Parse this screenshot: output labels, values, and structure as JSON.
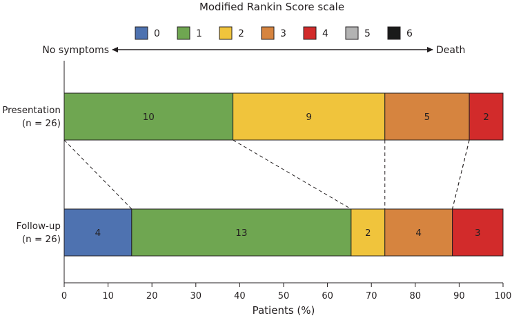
{
  "chart_data": {
    "type": "stacked-bar-horizontal",
    "title": "Modified Rankin Score scale",
    "legend": [
      {
        "label": "0",
        "color": "#4e72b0"
      },
      {
        "label": "1",
        "color": "#6fa651"
      },
      {
        "label": "2",
        "color": "#f0c43c"
      },
      {
        "label": "3",
        "color": "#d6843f"
      },
      {
        "label": "4",
        "color": "#d22b2b"
      },
      {
        "label": "5",
        "color": "#b3b3b3"
      },
      {
        "label": "6",
        "color": "#1a1a1a"
      }
    ],
    "scale_arrow": {
      "left_label": "No symptoms",
      "right_label": "Death"
    },
    "rows": [
      {
        "label_line1": "Presentation",
        "label_line2": "(n = 26)",
        "total": 26,
        "segments": [
          {
            "score": "1",
            "count": 10
          },
          {
            "score": "2",
            "count": 9
          },
          {
            "score": "3",
            "count": 5
          },
          {
            "score": "4",
            "count": 2
          }
        ]
      },
      {
        "label_line1": "Follow-up",
        "label_line2": "(n = 26)",
        "total": 26,
        "segments": [
          {
            "score": "0",
            "count": 4
          },
          {
            "score": "1",
            "count": 13
          },
          {
            "score": "2",
            "count": 2
          },
          {
            "score": "3",
            "count": 4
          },
          {
            "score": "4",
            "count": 3
          }
        ]
      }
    ],
    "xlabel": "Patients (%)",
    "xlim": [
      0,
      100
    ],
    "xticks": [
      0,
      10,
      20,
      30,
      40,
      50,
      60,
      70,
      80,
      90,
      100
    ]
  }
}
